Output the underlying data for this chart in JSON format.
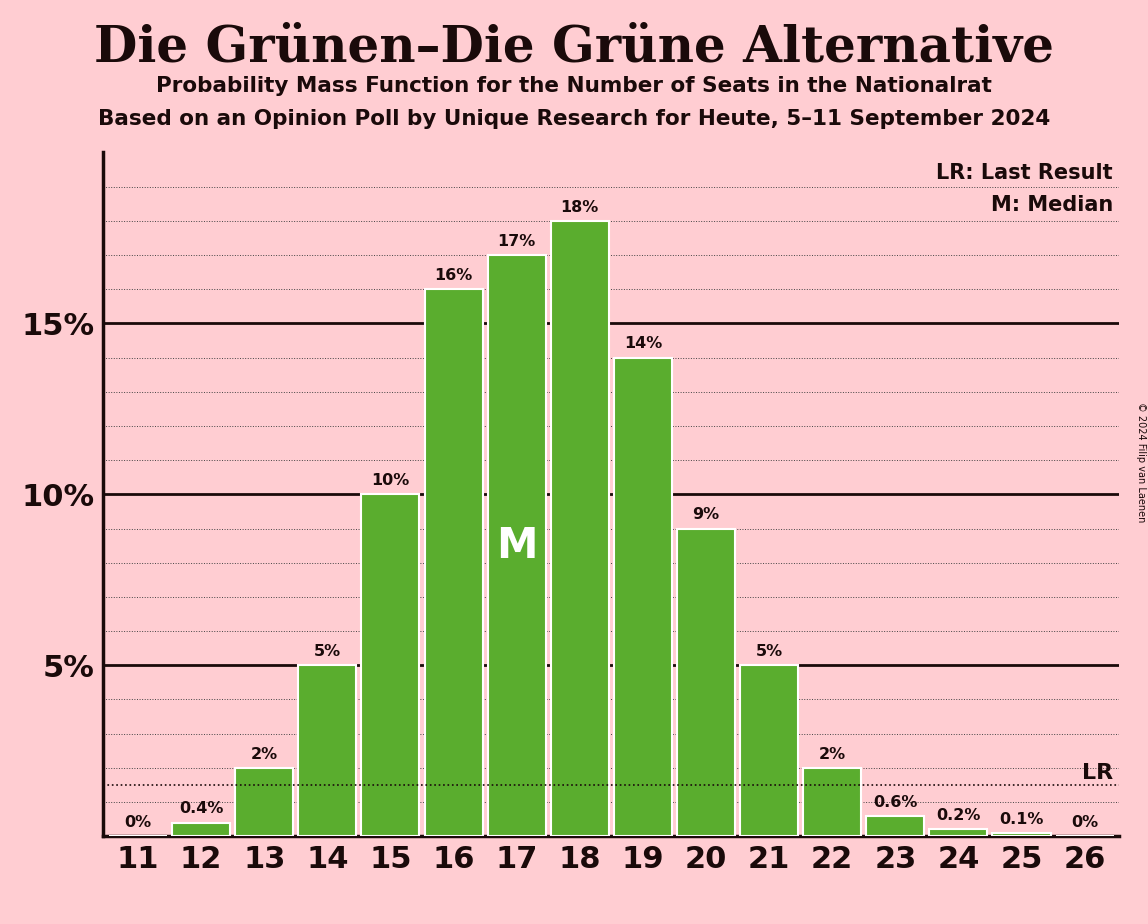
{
  "title": "Die Grünen–Die Grüne Alternative",
  "subtitle1": "Probability Mass Function for the Number of Seats in the Nationalrat",
  "subtitle2": "Based on an Opinion Poll by Unique Research for Heute, 5–11 September 2024",
  "copyright": "© 2024 Filip van Laenen",
  "seats": [
    11,
    12,
    13,
    14,
    15,
    16,
    17,
    18,
    19,
    20,
    21,
    22,
    23,
    24,
    25,
    26
  ],
  "probabilities": [
    0.0,
    0.4,
    2.0,
    5.0,
    10.0,
    16.0,
    17.0,
    18.0,
    14.0,
    9.0,
    5.0,
    2.0,
    0.6,
    0.2,
    0.1,
    0.0
  ],
  "labels": [
    "0%",
    "0.4%",
    "2%",
    "5%",
    "10%",
    "16%",
    "17%",
    "18%",
    "14%",
    "9%",
    "5%",
    "2%",
    "0.6%",
    "0.2%",
    "0.1%",
    "0%"
  ],
  "bar_color": "#5aad2e",
  "bar_edge_color": "#ffffff",
  "background_color": "#ffcdd2",
  "text_color": "#1a0a0a",
  "median_seat": 17,
  "lr_value": 1.5,
  "ylim": [
    0,
    20
  ],
  "legend_lr": "LR: Last Result",
  "legend_m": "M: Median",
  "major_gridlines": [
    5,
    10,
    15
  ],
  "minor_gridlines": [
    1,
    2,
    3,
    4,
    6,
    7,
    8,
    9,
    11,
    12,
    13,
    14,
    16,
    17,
    18,
    19
  ]
}
